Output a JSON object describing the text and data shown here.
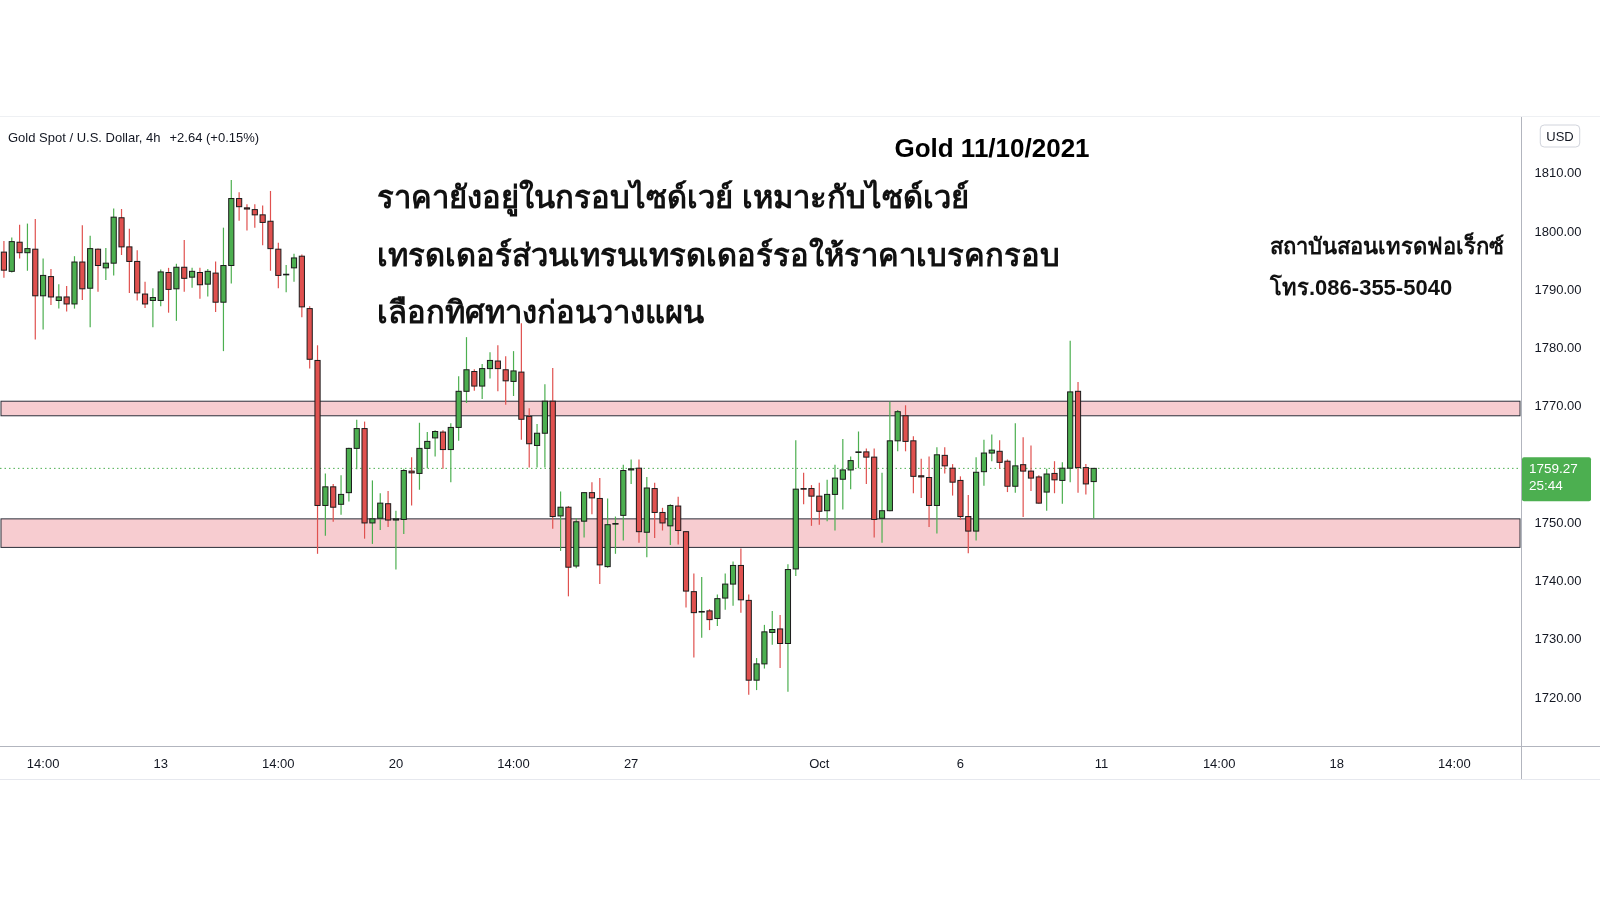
{
  "chart_data": {
    "type": "candlestick",
    "title": "Gold 11/10/2021",
    "ylabel": "USD",
    "annotations": [
      "Gold Spot / U.S. Dollar, 4h",
      "+2.64 (+0.15%)",
      "ราคายังอยู่ในกรอบไซด์เวย์ เหมาะกับไซด์เวย์",
      "เทรดเดอร์ส่วนเทรนเทรดเดอร์รอให้ราคาเบรคกรอบ",
      "เลือกทิศทางก่อนวางแผน",
      "สถาบันสอนเทรดฟอเร็กซ์",
      "โทร.086-355-5040"
    ],
    "categories": [
      null,
      null,
      null,
      null,
      null,
      "14:00",
      null,
      null,
      null,
      null,
      null,
      null,
      null,
      null,
      null,
      null,
      null,
      null,
      null,
      null,
      "13",
      null,
      null,
      null,
      null,
      null,
      null,
      null,
      null,
      null,
      null,
      null,
      null,
      null,
      null,
      "14:00",
      null,
      null,
      null,
      null,
      null,
      null,
      null,
      null,
      null,
      null,
      null,
      null,
      null,
      null,
      "20",
      null,
      null,
      null,
      null,
      null,
      null,
      null,
      null,
      null,
      null,
      null,
      null,
      null,
      null,
      "14:00",
      null,
      null,
      null,
      null,
      null,
      null,
      null,
      null,
      null,
      null,
      null,
      null,
      null,
      null,
      "27",
      null,
      null,
      null,
      null,
      null,
      null,
      null,
      null,
      null,
      null,
      null,
      null,
      null,
      null,
      null,
      null,
      null,
      null,
      null,
      null,
      null,
      null,
      null,
      "Oct",
      null,
      null,
      null,
      null,
      null,
      null,
      null,
      null,
      null,
      null,
      null,
      null,
      null,
      null,
      null,
      null,
      null,
      "6",
      null,
      null,
      null,
      null,
      null,
      null,
      null,
      null,
      null,
      null,
      null,
      null,
      null,
      null,
      null,
      null,
      null,
      "11",
      null,
      null,
      null,
      null,
      null,
      null,
      null,
      null,
      null,
      null,
      null,
      null,
      null,
      null,
      "14:00",
      null,
      null,
      null,
      null,
      null,
      null,
      null,
      null,
      null,
      null,
      null,
      null,
      null,
      null,
      "18",
      null,
      null,
      null,
      null,
      null,
      null,
      null,
      null,
      null,
      null,
      null,
      null,
      null,
      null,
      "14:00",
      null,
      null,
      null,
      null,
      null,
      null,
      null,
      null
    ],
    "ohlc": [
      [
        1796.4,
        1798.3,
        1792.0,
        1793.3
      ],
      [
        1793.1,
        1798.9,
        1792.9,
        1798.2
      ],
      [
        1798.1,
        1801.1,
        1795.3,
        1796.3
      ],
      [
        1796.3,
        1801.3,
        1793.2,
        1797.0
      ],
      [
        1796.9,
        1802.1,
        1781.4,
        1788.9
      ],
      [
        1788.9,
        1795.3,
        1783.1,
        1792.4
      ],
      [
        1792.2,
        1793.5,
        1787.3,
        1788.7
      ],
      [
        1788.1,
        1790.9,
        1786.7,
        1788.7
      ],
      [
        1788.7,
        1790.6,
        1786.2,
        1787.5
      ],
      [
        1787.5,
        1795.7,
        1786.7,
        1794.7
      ],
      [
        1794.7,
        1801.0,
        1788.2,
        1790.1
      ],
      [
        1790.2,
        1799.2,
        1783.5,
        1797.0
      ],
      [
        1796.9,
        1797.0,
        1789.6,
        1794.1
      ],
      [
        1793.7,
        1797.1,
        1791.6,
        1794.5
      ],
      [
        1794.5,
        1803.9,
        1792.4,
        1802.4
      ],
      [
        1802.3,
        1803.8,
        1795.9,
        1797.3
      ],
      [
        1797.3,
        1800.4,
        1789.4,
        1794.8
      ],
      [
        1794.8,
        1796.7,
        1788.1,
        1789.4
      ],
      [
        1789.2,
        1791.3,
        1786.8,
        1787.5
      ],
      [
        1788.1,
        1790.2,
        1783.5,
        1788.6
      ],
      [
        1788.1,
        1793.4,
        1787.1,
        1793.0
      ],
      [
        1792.9,
        1793.7,
        1786.0,
        1790.0
      ],
      [
        1790.1,
        1794.4,
        1784.6,
        1793.8
      ],
      [
        1793.8,
        1798.5,
        1789.6,
        1791.9
      ],
      [
        1792.1,
        1793.7,
        1790.3,
        1793.1
      ],
      [
        1792.9,
        1793.7,
        1788.4,
        1790.8
      ],
      [
        1790.9,
        1793.5,
        1788.8,
        1793.1
      ],
      [
        1792.8,
        1794.8,
        1786.1,
        1787.8
      ],
      [
        1787.8,
        1800.6,
        1779.4,
        1794.1
      ],
      [
        1794.1,
        1808.8,
        1791.0,
        1805.6
      ],
      [
        1805.6,
        1806.7,
        1801.8,
        1804.2
      ],
      [
        1804.0,
        1804.6,
        1800.1,
        1803.8
      ],
      [
        1803.7,
        1804.6,
        1800.6,
        1802.8
      ],
      [
        1802.8,
        1804.4,
        1797.6,
        1801.5
      ],
      [
        1801.7,
        1806.9,
        1793.2,
        1797.0
      ],
      [
        1796.9,
        1798.0,
        1790.2,
        1792.4
      ],
      [
        1792.5,
        1794.2,
        1789.5,
        1792.6
      ],
      [
        1793.7,
        1796.1,
        1791.3,
        1795.4
      ],
      [
        1795.7,
        1796.0,
        1785.2,
        1787.0
      ],
      [
        1786.7,
        1787.1,
        1776.4,
        1778.0
      ],
      [
        1777.8,
        1780.4,
        1744.6,
        1752.9
      ],
      [
        1752.9,
        1758.4,
        1747.7,
        1756.1
      ],
      [
        1756.1,
        1756.6,
        1750.1,
        1752.6
      ],
      [
        1753.1,
        1758.1,
        1751.3,
        1754.8
      ],
      [
        1755.1,
        1762.8,
        1753.6,
        1762.7
      ],
      [
        1762.7,
        1767.6,
        1759.1,
        1766.1
      ],
      [
        1766.1,
        1767.3,
        1747.2,
        1749.9
      ],
      [
        1749.9,
        1757.2,
        1746.3,
        1750.6
      ],
      [
        1750.7,
        1755.0,
        1748.7,
        1753.3
      ],
      [
        1753.2,
        1755.4,
        1749.2,
        1750.4
      ],
      [
        1750.4,
        1752.0,
        1741.9,
        1750.6
      ],
      [
        1750.5,
        1759.2,
        1748.0,
        1758.9
      ],
      [
        1758.8,
        1761.2,
        1752.9,
        1758.5
      ],
      [
        1758.4,
        1767.1,
        1755.6,
        1762.7
      ],
      [
        1762.7,
        1765.5,
        1759.3,
        1763.9
      ],
      [
        1764.5,
        1765.8,
        1761.3,
        1765.6
      ],
      [
        1765.5,
        1765.8,
        1759.2,
        1762.5
      ],
      [
        1762.5,
        1767.0,
        1756.9,
        1766.3
      ],
      [
        1766.3,
        1775.1,
        1764.0,
        1772.5
      ],
      [
        1772.5,
        1781.8,
        1770.5,
        1776.2
      ],
      [
        1775.9,
        1776.3,
        1772.6,
        1773.4
      ],
      [
        1773.4,
        1777.2,
        1771.2,
        1776.4
      ],
      [
        1776.4,
        1779.2,
        1774.7,
        1777.8
      ],
      [
        1777.7,
        1780.4,
        1772.5,
        1776.4
      ],
      [
        1776.2,
        1778.5,
        1770.2,
        1774.3
      ],
      [
        1774.2,
        1779.4,
        1771.7,
        1776.0
      ],
      [
        1775.8,
        1784.2,
        1764.2,
        1767.7
      ],
      [
        1768.2,
        1769.6,
        1759.4,
        1763.5
      ],
      [
        1763.2,
        1766.9,
        1759.4,
        1765.3
      ],
      [
        1765.3,
        1773.7,
        1759.4,
        1770.8
      ],
      [
        1770.8,
        1776.5,
        1748.9,
        1751.0
      ],
      [
        1751.1,
        1755.3,
        1745.1,
        1752.6
      ],
      [
        1752.6,
        1752.8,
        1737.3,
        1742.3
      ],
      [
        1742.5,
        1750.7,
        1742.1,
        1750.1
      ],
      [
        1750.2,
        1755.2,
        1747.4,
        1755.1
      ],
      [
        1755.1,
        1756.9,
        1751.4,
        1754.2
      ],
      [
        1754.1,
        1757.6,
        1739.4,
        1742.7
      ],
      [
        1742.4,
        1754.1,
        1742.2,
        1749.6
      ],
      [
        1749.7,
        1751.0,
        1744.6,
        1749.8
      ],
      [
        1751.2,
        1759.9,
        1746.9,
        1758.9
      ],
      [
        1759.0,
        1760.8,
        1756.6,
        1759.2
      ],
      [
        1759.3,
        1760.8,
        1746.5,
        1748.4
      ],
      [
        1748.3,
        1757.8,
        1744.0,
        1755.9
      ],
      [
        1755.8,
        1756.8,
        1747.3,
        1751.7
      ],
      [
        1751.7,
        1752.5,
        1748.6,
        1749.9
      ],
      [
        1749.4,
        1753.1,
        1746.1,
        1752.9
      ],
      [
        1752.8,
        1754.4,
        1746.2,
        1748.6
      ],
      [
        1748.4,
        1748.5,
        1735.4,
        1738.2
      ],
      [
        1738.1,
        1741.2,
        1726.8,
        1734.5
      ],
      [
        1734.6,
        1740.6,
        1730.2,
        1734.7
      ],
      [
        1734.8,
        1735.1,
        1731.5,
        1733.3
      ],
      [
        1733.5,
        1737.6,
        1732.2,
        1736.9
      ],
      [
        1737.0,
        1741.2,
        1735.0,
        1739.4
      ],
      [
        1739.4,
        1743.3,
        1735.7,
        1742.6
      ],
      [
        1742.6,
        1745.5,
        1734.5,
        1736.7
      ],
      [
        1736.6,
        1737.6,
        1720.4,
        1722.9
      ],
      [
        1722.9,
        1726.7,
        1721.2,
        1725.7
      ],
      [
        1725.7,
        1732.4,
        1724.9,
        1731.2
      ],
      [
        1731.1,
        1734.8,
        1729.0,
        1731.6
      ],
      [
        1731.7,
        1734.1,
        1725.0,
        1729.2
      ],
      [
        1729.2,
        1742.8,
        1720.9,
        1741.9
      ],
      [
        1742.0,
        1764.1,
        1740.8,
        1755.7
      ],
      [
        1755.8,
        1758.5,
        1753.1,
        1755.7
      ],
      [
        1755.8,
        1756.4,
        1749.4,
        1754.5
      ],
      [
        1754.5,
        1756.8,
        1749.6,
        1751.9
      ],
      [
        1752.0,
        1757.3,
        1750.2,
        1754.8
      ],
      [
        1754.8,
        1759.9,
        1748.6,
        1757.6
      ],
      [
        1757.4,
        1764.3,
        1752.2,
        1759.0
      ],
      [
        1759.0,
        1761.3,
        1755.7,
        1760.6
      ],
      [
        1762.0,
        1765.6,
        1759.3,
        1762.1
      ],
      [
        1762.1,
        1762.7,
        1756.6,
        1761.2
      ],
      [
        1761.2,
        1762.7,
        1747.4,
        1750.5
      ],
      [
        1750.7,
        1758.5,
        1746.5,
        1752.0
      ],
      [
        1752.0,
        1770.7,
        1751.9,
        1764.0
      ],
      [
        1764.0,
        1769.3,
        1762.2,
        1769.0
      ],
      [
        1768.3,
        1770.1,
        1762.2,
        1763.9
      ],
      [
        1764.0,
        1764.8,
        1755.0,
        1757.9
      ],
      [
        1758.0,
        1760.9,
        1754.2,
        1757.8
      ],
      [
        1757.7,
        1761.3,
        1749.2,
        1752.9
      ],
      [
        1752.9,
        1762.9,
        1748.1,
        1761.6
      ],
      [
        1761.5,
        1762.9,
        1758.4,
        1759.7
      ],
      [
        1759.3,
        1760.0,
        1754.6,
        1756.9
      ],
      [
        1757.2,
        1757.9,
        1750.4,
        1751.0
      ],
      [
        1751.0,
        1754.7,
        1744.7,
        1748.5
      ],
      [
        1748.5,
        1761.2,
        1746.9,
        1758.6
      ],
      [
        1758.7,
        1764.2,
        1756.3,
        1761.9
      ],
      [
        1761.9,
        1765.1,
        1760.5,
        1762.4
      ],
      [
        1762.2,
        1764.1,
        1759.2,
        1760.3
      ],
      [
        1760.5,
        1760.8,
        1755.2,
        1756.2
      ],
      [
        1756.2,
        1767.0,
        1755.1,
        1759.7
      ],
      [
        1759.9,
        1764.6,
        1750.9,
        1758.8
      ],
      [
        1758.8,
        1763.2,
        1755.4,
        1757.6
      ],
      [
        1757.8,
        1758.1,
        1753.2,
        1753.3
      ],
      [
        1755.2,
        1759.2,
        1752.0,
        1758.3
      ],
      [
        1758.4,
        1760.5,
        1755.0,
        1757.3
      ],
      [
        1757.2,
        1760.3,
        1753.2,
        1759.3
      ],
      [
        1759.3,
        1781.2,
        1756.9,
        1772.4
      ],
      [
        1772.5,
        1774.1,
        1755.1,
        1759.4
      ],
      [
        1759.4,
        1760.0,
        1754.8,
        1756.6
      ],
      [
        1757.0,
        1759.3,
        1750.7,
        1759.27
      ],
      null,
      null,
      null,
      null,
      null,
      null,
      null,
      null,
      null,
      null,
      null,
      null,
      null,
      null,
      null,
      null,
      null,
      null,
      null,
      null,
      null,
      null,
      null,
      null,
      null,
      null,
      null,
      null,
      null,
      null,
      null,
      null,
      null,
      null,
      null,
      null,
      null,
      null,
      null,
      null,
      null,
      null,
      null,
      null,
      null,
      null,
      null,
      null,
      null,
      null,
      null,
      null,
      null,
      null
    ],
    "colors": [
      "#e0514f",
      "#4caf50",
      "#e0514f",
      "#4caf50",
      "#e0514f",
      "#4caf50",
      "#e0514f",
      "#4caf50",
      "#e0514f",
      "#4caf50",
      "#e0514f",
      "#4caf50",
      "#e0514f",
      "#4caf50",
      "#4caf50",
      "#e0514f",
      "#e0514f",
      "#e0514f",
      "#e0514f",
      "#4caf50",
      "#4caf50",
      "#e0514f",
      "#4caf50",
      "#e0514f",
      "#4caf50",
      "#e0514f",
      "#4caf50",
      "#e0514f",
      "#4caf50",
      "#4caf50",
      "#e0514f",
      "#e0514f",
      "#e0514f",
      "#e0514f",
      "#e0514f",
      "#e0514f",
      "#4caf50",
      "#4caf50",
      "#e0514f",
      "#e0514f",
      "#e0514f",
      "#4caf50",
      "#e0514f",
      "#4caf50",
      "#4caf50",
      "#4caf50",
      "#e0514f",
      "#4caf50",
      "#4caf50",
      "#e0514f",
      "#4caf50",
      "#4caf50",
      "#e0514f",
      "#4caf50",
      "#4caf50",
      "#4caf50",
      "#e0514f",
      "#4caf50",
      "#4caf50",
      "#4caf50",
      "#e0514f",
      "#4caf50",
      "#4caf50",
      "#e0514f",
      "#e0514f",
      "#4caf50",
      "#e0514f",
      "#e0514f",
      "#4caf50",
      "#4caf50",
      "#e0514f",
      "#4caf50",
      "#e0514f",
      "#4caf50",
      "#4caf50",
      "#e0514f",
      "#e0514f",
      "#4caf50",
      "#4caf50",
      "#4caf50",
      "#4caf50",
      "#e0514f",
      "#4caf50",
      "#e0514f",
      "#e0514f",
      "#4caf50",
      "#e0514f",
      "#e0514f",
      "#e0514f",
      "#4caf50",
      "#e0514f",
      "#4caf50",
      "#4caf50",
      "#4caf50",
      "#e0514f",
      "#e0514f",
      "#4caf50",
      "#4caf50",
      "#4caf50",
      "#e0514f",
      "#4caf50",
      "#4caf50",
      "#e0514f",
      "#e0514f",
      "#e0514f",
      "#4caf50",
      "#4caf50",
      "#4caf50",
      "#4caf50",
      "#4caf50",
      "#e0514f",
      "#e0514f",
      "#4caf50",
      "#4caf50",
      "#4caf50",
      "#e0514f",
      "#e0514f",
      "#e0514f",
      "#e0514f",
      "#4caf50",
      "#e0514f",
      "#e0514f",
      "#e0514f",
      "#e0514f",
      "#4caf50",
      "#4caf50",
      "#4caf50",
      "#e0514f",
      "#e0514f",
      "#4caf50",
      "#e0514f",
      "#e0514f",
      "#e0514f",
      "#4caf50",
      "#e0514f",
      "#4caf50",
      "#4caf50",
      "#e0514f",
      "#e0514f",
      "#4caf50",
      null,
      null,
      null,
      null,
      null,
      null,
      null,
      null,
      null,
      null,
      null,
      null,
      null,
      null,
      null,
      null,
      null,
      null,
      null,
      null,
      null,
      null,
      null,
      null,
      null,
      null,
      null,
      null,
      null,
      null,
      null,
      null,
      null,
      null,
      null,
      null,
      null,
      null,
      null,
      null,
      null,
      null,
      null,
      null,
      null,
      null,
      null,
      null,
      null,
      null,
      null,
      null,
      null,
      null
    ],
    "ylim": [
      1711.6,
      1819.6
    ],
    "yticks": [
      {
        "value": 1720,
        "label": "1720.00"
      },
      {
        "value": 1730,
        "label": "1730.00"
      },
      {
        "value": 1740,
        "label": "1740.00"
      },
      {
        "value": 1750,
        "label": "1750.00"
      },
      {
        "value": 1770,
        "label": "1770.00"
      },
      {
        "value": 1780,
        "label": "1780.00"
      },
      {
        "value": 1790,
        "label": "1790.00"
      },
      {
        "value": 1800,
        "label": "1800.00"
      },
      {
        "value": 1810,
        "label": "1810.00"
      }
    ],
    "ref_lines": [
      {
        "axis": "y",
        "value": 1759.27,
        "label": "1759.27\n25:44",
        "color": "#4caf50",
        "line_style": "dotted"
      }
    ],
    "bands": [
      {
        "axis": "y",
        "from": 1768.3,
        "to": 1770.8,
        "color": "#f7ccd0"
      },
      {
        "axis": "y",
        "from": 1745.7,
        "to": 1750.6,
        "color": "#f7ccd0"
      }
    ]
  }
}
